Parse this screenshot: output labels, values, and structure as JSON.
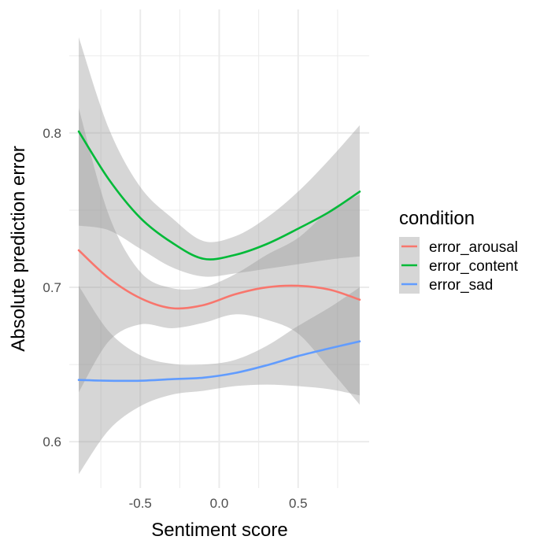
{
  "chart_data": {
    "type": "line",
    "title": "",
    "xlabel": "Sentiment score",
    "ylabel": "Absolute prediction error",
    "xlim": [
      -0.95,
      0.95
    ],
    "ylim": [
      0.57,
      0.88
    ],
    "x_ticks": [
      -0.5,
      0.0,
      0.5
    ],
    "x_tick_labels": [
      "-0.5",
      "0.0",
      "0.5"
    ],
    "y_ticks": [
      0.6,
      0.7,
      0.8
    ],
    "y_tick_labels": [
      "0.6",
      "0.7",
      "0.8"
    ],
    "grid": true,
    "legend": {
      "title": "condition",
      "position": "right"
    },
    "confidence_band_color": "#999999",
    "series": [
      {
        "name": "error_arousal",
        "color": "#F8766D",
        "x": [
          -0.89,
          -0.7,
          -0.5,
          -0.3,
          -0.1,
          0.1,
          0.3,
          0.5,
          0.7,
          0.89
        ],
        "y": [
          0.724,
          0.706,
          0.693,
          0.6865,
          0.6885,
          0.6955,
          0.7,
          0.701,
          0.6985,
          0.692
        ],
        "lower": [
          0.632,
          0.665,
          0.676,
          0.6735,
          0.677,
          0.6825,
          0.679,
          0.67,
          0.647,
          0.624
        ],
        "upper": [
          0.816,
          0.747,
          0.71,
          0.6995,
          0.7,
          0.7085,
          0.721,
          0.732,
          0.75,
          0.76
        ]
      },
      {
        "name": "error_content",
        "color": "#00BA38",
        "x": [
          -0.89,
          -0.7,
          -0.5,
          -0.3,
          -0.1,
          0.1,
          0.3,
          0.5,
          0.7,
          0.89
        ],
        "y": [
          0.801,
          0.77,
          0.745,
          0.729,
          0.7185,
          0.721,
          0.728,
          0.738,
          0.749,
          0.762
        ],
        "lower": [
          0.74,
          0.737,
          0.725,
          0.713,
          0.707,
          0.709,
          0.712,
          0.715,
          0.718,
          0.72
        ],
        "upper": [
          0.862,
          0.803,
          0.765,
          0.745,
          0.73,
          0.733,
          0.745,
          0.762,
          0.783,
          0.805
        ]
      },
      {
        "name": "error_sad",
        "color": "#619CFF",
        "x": [
          -0.89,
          -0.7,
          -0.5,
          -0.3,
          -0.1,
          0.1,
          0.3,
          0.5,
          0.7,
          0.89
        ],
        "y": [
          0.64,
          0.6395,
          0.6395,
          0.6405,
          0.6415,
          0.6445,
          0.6495,
          0.6555,
          0.6605,
          0.665
        ],
        "lower": [
          0.579,
          0.6075,
          0.623,
          0.6305,
          0.633,
          0.636,
          0.637,
          0.636,
          0.634,
          0.63
        ],
        "upper": [
          0.701,
          0.6715,
          0.656,
          0.6505,
          0.65,
          0.653,
          0.662,
          0.675,
          0.687,
          0.7
        ]
      }
    ]
  }
}
